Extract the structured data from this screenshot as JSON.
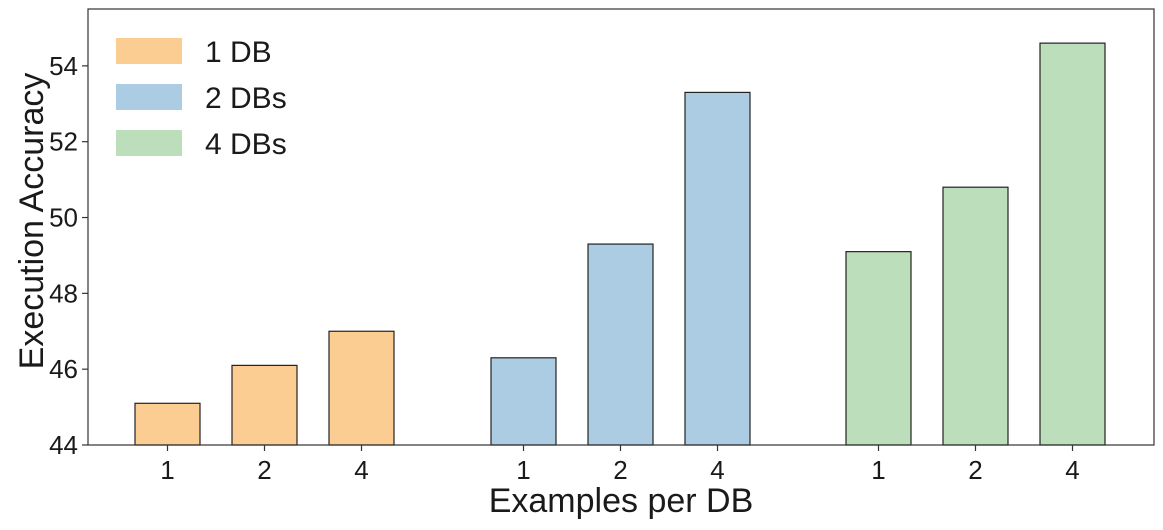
{
  "chart_data": {
    "type": "bar",
    "title": "",
    "xlabel": "Examples per DB",
    "ylabel": "Execution Accuracy",
    "ylim": [
      44,
      55.5
    ],
    "yticks": [
      44,
      46,
      48,
      50,
      52,
      54
    ],
    "grid": false,
    "legend_position": "top-left",
    "series": [
      {
        "name": "1 DB",
        "color": "#FBCD93",
        "categories": [
          "1",
          "2",
          "4"
        ],
        "values": [
          45.1,
          46.1,
          47.0
        ]
      },
      {
        "name": "2 DBs",
        "color": "#ABCCE2",
        "categories": [
          "1",
          "2",
          "4"
        ],
        "values": [
          46.3,
          49.3,
          53.3
        ]
      },
      {
        "name": "4 DBs",
        "color": "#BDDEBB",
        "categories": [
          "1",
          "2",
          "4"
        ],
        "values": [
          49.1,
          50.8,
          54.6
        ]
      }
    ]
  }
}
